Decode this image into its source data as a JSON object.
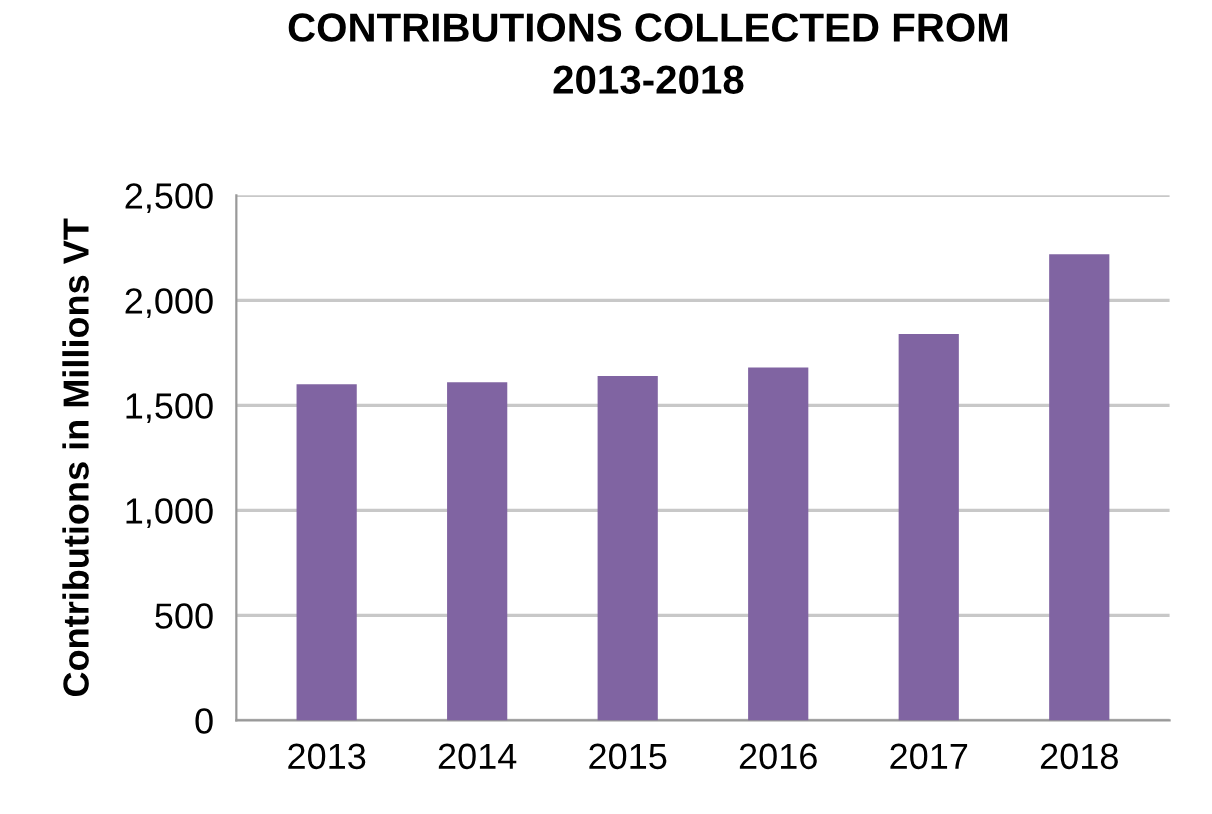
{
  "chart_data": {
    "type": "bar",
    "title": "CONTRIBUTIONS COLLECTED FROM\n2013-2018",
    "ylabel": "Contributions in Millions VT",
    "categories": [
      "2013",
      "2014",
      "2015",
      "2016",
      "2017",
      "2018"
    ],
    "values": [
      1600,
      1610,
      1640,
      1680,
      1840,
      2220
    ],
    "color": "#8064a2",
    "ylim": [
      0,
      2500
    ],
    "yticks": [
      {
        "value": 0,
        "label": "0"
      },
      {
        "value": 500,
        "label": "500"
      },
      {
        "value": 1000,
        "label": "1,000"
      },
      {
        "value": 1500,
        "label": "1,500"
      },
      {
        "value": 2000,
        "label": "2,000"
      },
      {
        "value": 2500,
        "label": "2,500"
      }
    ],
    "grid": "y"
  }
}
